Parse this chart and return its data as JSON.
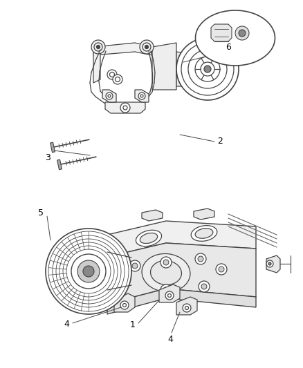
{
  "background_color": "#ffffff",
  "line_color": "#444444",
  "text_color": "#000000",
  "fig_width": 4.39,
  "fig_height": 5.33,
  "dpi": 100
}
